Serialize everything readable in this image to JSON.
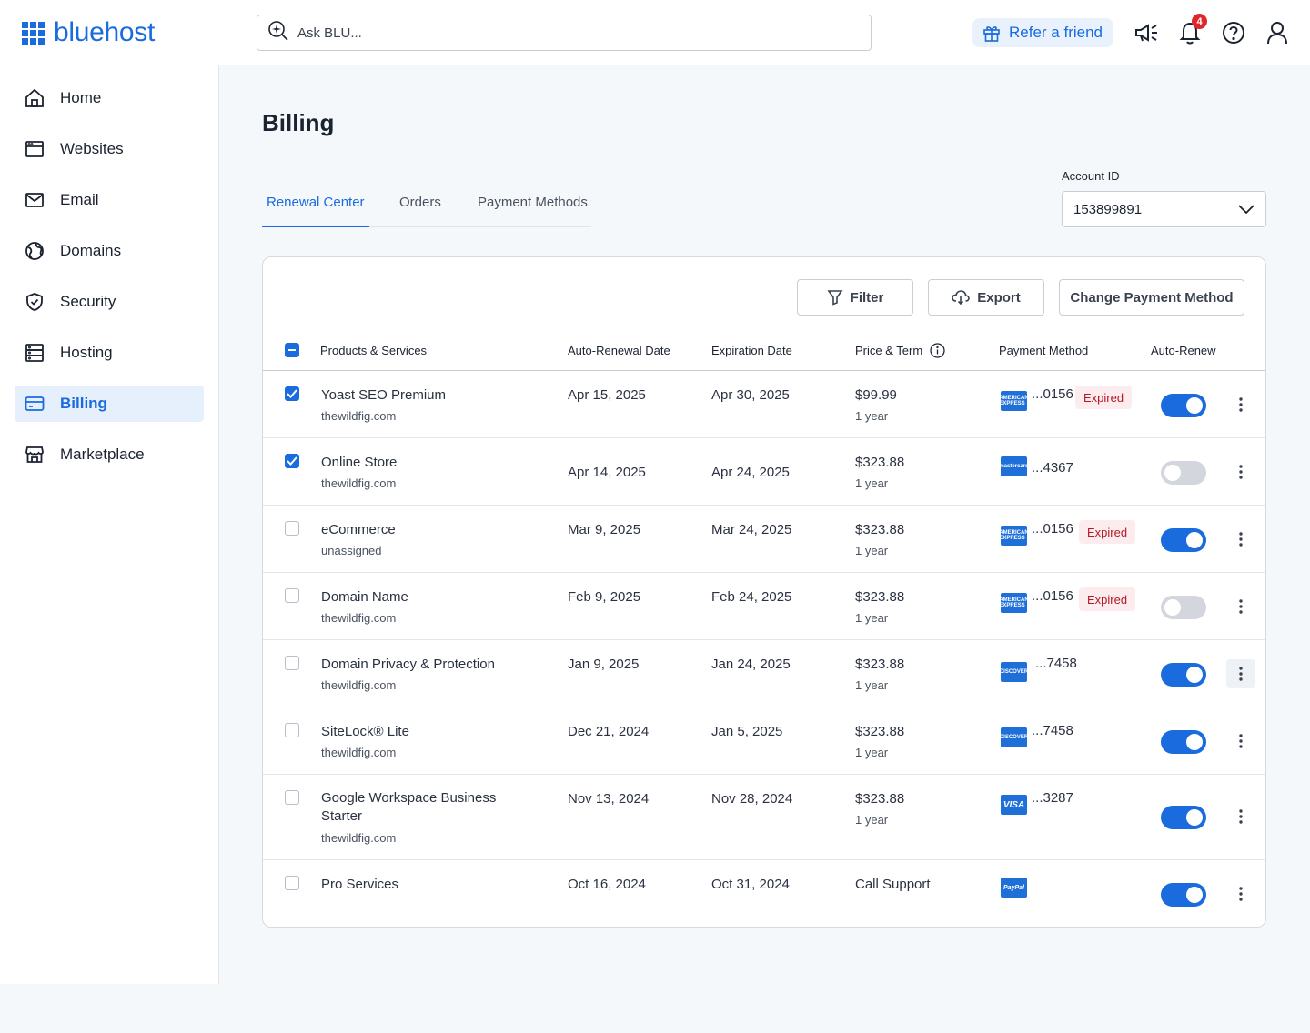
{
  "header": {
    "logo_text": "bluehost",
    "search_placeholder": "Ask BLU...",
    "refer_label": "Refer a friend",
    "notification_count": "4",
    "icons": [
      "megaphone-icon",
      "bell-icon",
      "help-icon",
      "user-icon"
    ]
  },
  "sidebar": {
    "items": [
      {
        "label": "Home",
        "icon": "home-icon"
      },
      {
        "label": "Websites",
        "icon": "browser-icon"
      },
      {
        "label": "Email",
        "icon": "mail-icon"
      },
      {
        "label": "Domains",
        "icon": "globe-icon"
      },
      {
        "label": "Security",
        "icon": "shield-icon"
      },
      {
        "label": "Hosting",
        "icon": "server-icon"
      },
      {
        "label": "Billing",
        "icon": "credit-card-icon",
        "active": true
      },
      {
        "label": "Marketplace",
        "icon": "store-icon"
      }
    ]
  },
  "main": {
    "title": "Billing",
    "tabs": [
      {
        "label": "Renewal Center",
        "active": true
      },
      {
        "label": "Orders"
      },
      {
        "label": "Payment Methods"
      }
    ],
    "account": {
      "label": "Account ID",
      "value": "153899891"
    },
    "toolbar": {
      "filter_label": "Filter",
      "export_label": "Export",
      "change_payment_label": "Change Payment Method"
    },
    "table": {
      "columns": [
        "Products & Services",
        "Auto-Renewal Date",
        "Expiration Date",
        "Price & Term",
        "Payment Method",
        "Auto-Renew"
      ],
      "rows": [
        {
          "name": "Yoast SEO Premium",
          "domain": "thewildfig.com",
          "renewal": "Apr 15, 2025",
          "expiration": "Apr 30, 2025",
          "price": "$99.99",
          "term": "1 year",
          "card": "amex",
          "card_text": "AMERICAN EXPRESS",
          "last4": "...0156",
          "expired": "Expired",
          "checked": true,
          "auto_renew": true
        },
        {
          "name": "Online Store",
          "domain": "thewildfig.com",
          "renewal": "Apr 14, 2025",
          "expiration": "Apr 24, 2025",
          "price": "$323.88",
          "term": "1 year",
          "card": "mastercard",
          "card_text": "mastercard",
          "last4": "...4367",
          "expired": "",
          "checked": true,
          "auto_renew": false
        },
        {
          "name": "eCommerce",
          "domain": "unassigned",
          "renewal": "Mar 9, 2025",
          "expiration": "Mar 24, 2025",
          "price": "$323.88",
          "term": "1 year",
          "card": "amex",
          "card_text": "AMERICAN EXPRESS",
          "last4": "...0156",
          "expired": "Expired",
          "checked": false,
          "auto_renew": true
        },
        {
          "name": "Domain Name",
          "domain": "thewildfig.com",
          "renewal": "Feb 9, 2025",
          "expiration": "Feb 24, 2025",
          "price": "$323.88",
          "term": "1 year",
          "card": "amex",
          "card_text": "AMERICAN EXPRESS",
          "last4": "...0156",
          "expired": "Expired",
          "checked": false,
          "auto_renew": false
        },
        {
          "name": "Domain Privacy & Protection",
          "domain": "thewildfig.com",
          "renewal": "Jan 9, 2025",
          "expiration": "Jan 24, 2025",
          "price": "$323.88",
          "term": "1 year",
          "card": "discover",
          "card_text": "DISCOVER",
          "last4": "...7458",
          "expired": "",
          "checked": false,
          "auto_renew": true
        },
        {
          "name": "SiteLock® Lite",
          "domain": "thewildfig.com",
          "renewal": "Dec 21, 2024",
          "expiration": "Jan 5, 2025",
          "price": "$323.88",
          "term": "1 year",
          "card": "discover",
          "card_text": "DISCOVER",
          "last4": "...7458",
          "expired": "",
          "checked": false,
          "auto_renew": true
        },
        {
          "name": "Google Workspace Business Starter",
          "domain": "thewildfig.com",
          "renewal": "Nov 13, 2024",
          "expiration": "Nov 28, 2024",
          "price": "$323.88",
          "term": "1 year",
          "card": "visa",
          "card_text": "VISA",
          "last4": "...3287",
          "expired": "",
          "checked": false,
          "auto_renew": true
        },
        {
          "name": "Pro Services",
          "domain": "",
          "renewal": "Oct 16, 2024",
          "expiration": "Oct 31, 2024",
          "price": "Call Support",
          "term": "",
          "card": "paypal",
          "card_text": "PayPal",
          "last4": "",
          "expired": "",
          "checked": false,
          "auto_renew": true
        }
      ]
    }
  },
  "colors": {
    "accent": "#196bde",
    "expired_bg": "#fdecee",
    "expired_text": "#b11a2a"
  }
}
